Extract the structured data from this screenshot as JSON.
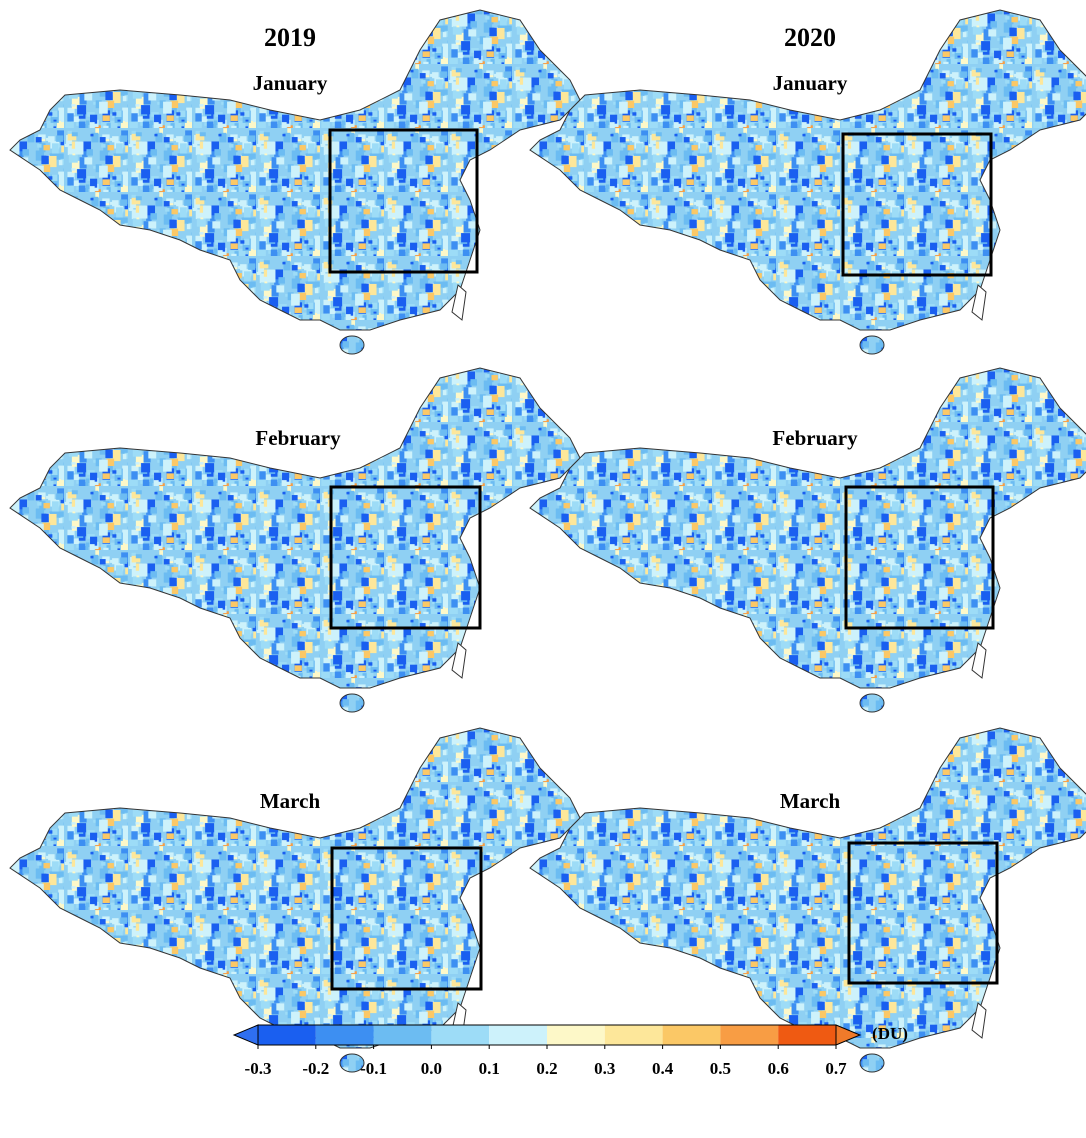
{
  "columns": [
    "2019",
    "2020"
  ],
  "panels": [
    {
      "title": "January"
    },
    {
      "title": "January"
    },
    {
      "title": "February"
    },
    {
      "title": "February"
    },
    {
      "title": "March"
    },
    {
      "title": "March"
    }
  ],
  "colorbar": {
    "colors": [
      "#1a5ff0",
      "#3d8ff2",
      "#6cbcf2",
      "#9ddcf7",
      "#cdf2fb",
      "#fdf8c8",
      "#fde79a",
      "#fbc866",
      "#f89d44",
      "#ef5a12"
    ],
    "under_color": "#2f6ff0",
    "over_color": "#f07a2a",
    "ticks": [
      -0.3,
      -0.2,
      -0.1,
      {
        "value": 0,
        "label": "0.0"
      },
      0.1,
      0.2,
      0.3,
      0.4,
      0.5,
      0.6,
      0.7
    ],
    "unit": "(DU)"
  }
}
